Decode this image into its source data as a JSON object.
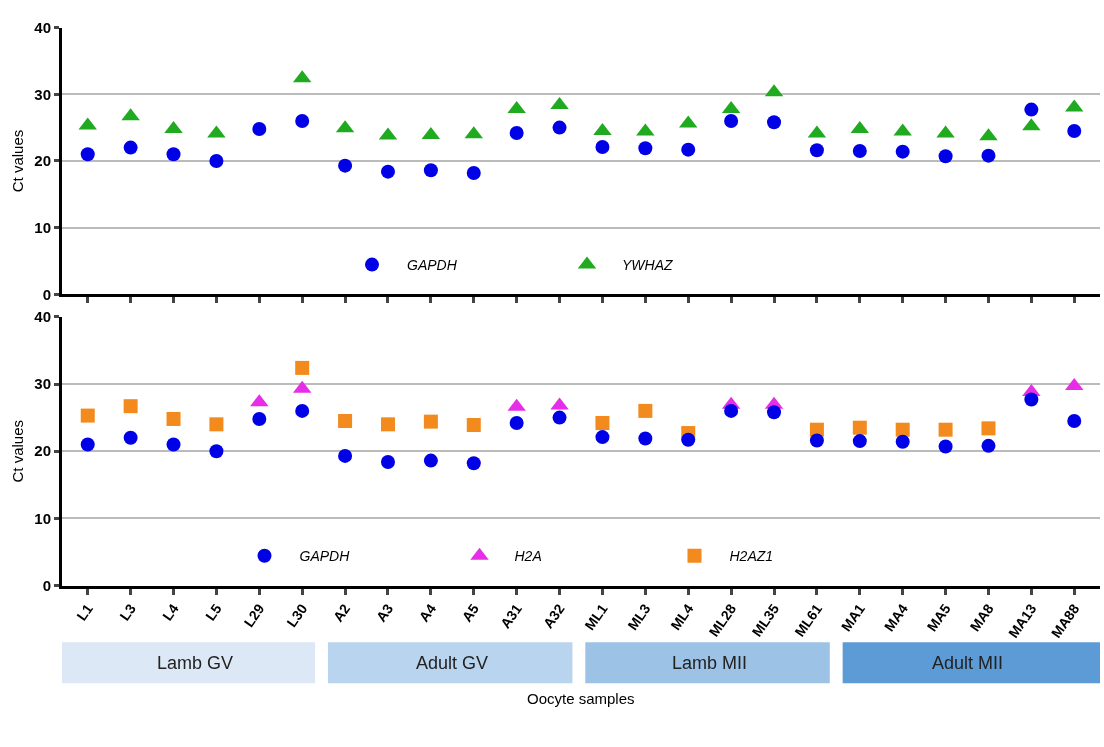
{
  "chart_data": [
    {
      "type": "scatter",
      "ylabel": "Ct values",
      "categories": [
        null,
        null,
        null,
        null,
        null,
        null,
        null,
        null,
        null,
        null,
        null,
        null,
        null,
        null,
        null,
        null,
        null,
        null,
        null,
        null,
        null,
        null,
        null,
        null
      ],
      "ylim": [
        0,
        40
      ],
      "yticks": [
        0,
        10,
        20,
        30,
        40
      ],
      "grid": "y",
      "legend": "bottom",
      "tick_labels": "y",
      "series": [
        {
          "name": "GAPDH",
          "color": "#0000e6",
          "marker": "circle",
          "values": [
            21,
            22,
            21,
            20,
            24.8,
            26,
            19.3,
            18.4,
            18.6,
            18.2,
            24.2,
            25,
            22.1,
            21.9,
            21.7,
            26,
            25.8,
            21.6,
            21.5,
            21.4,
            20.7,
            20.8,
            27.7,
            24.5
          ]
        },
        {
          "name": "YWHAZ",
          "color": "#1faa1f",
          "marker": "triangle",
          "values": [
            25.3,
            26.7,
            24.8,
            24.1,
            null,
            32.4,
            24.9,
            23.8,
            23.9,
            24,
            27.8,
            28.4,
            24.5,
            24.4,
            25.6,
            27.8,
            30.3,
            24.1,
            24.8,
            24.4,
            24.1,
            23.7,
            25.2,
            28
          ]
        }
      ]
    },
    {
      "type": "scatter",
      "ylabel": "Ct values",
      "xlabel": "Oocyte samples",
      "categories": [
        "L1",
        "L3",
        "L4",
        "L5",
        "L29",
        "L30",
        "A2",
        "A3",
        "A4",
        "A5",
        "A31",
        "A32",
        "ML1",
        "ML3",
        "ML4",
        "ML28",
        "ML35",
        "ML61",
        "MA1",
        "MA4",
        "MA5",
        "MA8",
        "MA13",
        "MA88"
      ],
      "ylim": [
        0,
        40
      ],
      "yticks": [
        0,
        10,
        20,
        30,
        40
      ],
      "grid": "y",
      "legend": "bottom",
      "annotations": [
        "Lamb GV",
        "Adult GV",
        "Lamb MII",
        "Adult MII"
      ],
      "series": [
        {
          "name": "GAPDH",
          "color": "#0000e6",
          "marker": "circle",
          "values": [
            21,
            22,
            21,
            20,
            24.8,
            26,
            19.3,
            18.4,
            18.6,
            18.2,
            24.2,
            25,
            22.1,
            21.9,
            21.7,
            26,
            25.8,
            21.6,
            21.5,
            21.4,
            20.7,
            20.8,
            27.7,
            24.5
          ]
        },
        {
          "name": "H2A",
          "color": "#e62ee6",
          "marker": "triangle",
          "values": [
            null,
            null,
            null,
            null,
            27.3,
            29.3,
            null,
            null,
            null,
            null,
            26.6,
            26.8,
            null,
            null,
            null,
            26.9,
            26.9,
            null,
            null,
            null,
            null,
            null,
            28.8,
            29.7
          ]
        },
        {
          "name": "H2AZ1",
          "color": "#f28a1e",
          "marker": "square",
          "values": [
            25.3,
            26.7,
            24.8,
            24,
            null,
            32.4,
            24.5,
            24,
            24.4,
            23.9,
            null,
            null,
            24.2,
            26,
            22.7,
            null,
            null,
            23.2,
            23.5,
            23.2,
            23.2,
            23.4,
            null,
            null
          ]
        }
      ]
    }
  ]
}
